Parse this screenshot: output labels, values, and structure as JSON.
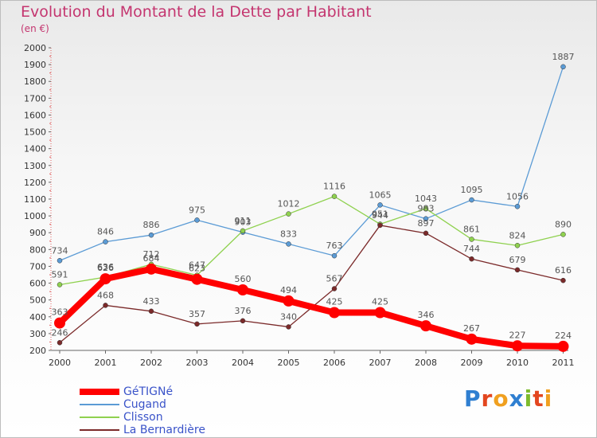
{
  "chart_data": {
    "type": "line",
    "title": "Evolution du Montant de la Dette par Habitant",
    "subtitle": "(en €)",
    "x": [
      "2000",
      "2001",
      "2002",
      "2003",
      "2004",
      "2005",
      "2006",
      "2007",
      "2008",
      "2009",
      "2010",
      "2011"
    ],
    "ylim": [
      200,
      2000
    ],
    "yticks": [
      200,
      300,
      400,
      500,
      600,
      700,
      800,
      900,
      1000,
      1100,
      1200,
      1300,
      1400,
      1500,
      1600,
      1700,
      1800,
      1900,
      2000
    ],
    "grid": false,
    "legend_position": "bottom-left",
    "series": [
      {
        "name": "GéTIGNé",
        "color": "#ff0000",
        "emphasis": true,
        "values": [
          363,
          626,
          684,
          623,
          560,
          494,
          425,
          425,
          346,
          267,
          227,
          224
        ]
      },
      {
        "name": "Cugand",
        "color": "#5b9bd5",
        "emphasis": false,
        "values": [
          734,
          846,
          886,
          975,
          903,
          833,
          763,
          1065,
          983,
          1095,
          1056,
          1887
        ]
      },
      {
        "name": "Clisson",
        "color": "#8fd14f",
        "emphasis": false,
        "values": [
          591,
          636,
          712,
          647,
          911,
          1012,
          1116,
          951,
          1043,
          861,
          824,
          890
        ]
      },
      {
        "name": "La Bernardière",
        "color": "#7b2a2a",
        "emphasis": false,
        "values": [
          246,
          468,
          433,
          357,
          376,
          340,
          567,
          944,
          897,
          744,
          679,
          616
        ]
      }
    ]
  },
  "logo": {
    "text": "Proxiti",
    "letters": [
      {
        "ch": "P",
        "color": "#2f7fd1"
      },
      {
        "ch": "r",
        "color": "#e3461f"
      },
      {
        "ch": "o",
        "color": "#f0a020"
      },
      {
        "ch": "x",
        "color": "#2f7fd1"
      },
      {
        "ch": "i",
        "color": "#7dbb2d"
      },
      {
        "ch": "t",
        "color": "#e3461f"
      },
      {
        "ch": "i",
        "color": "#f0a020"
      }
    ]
  }
}
